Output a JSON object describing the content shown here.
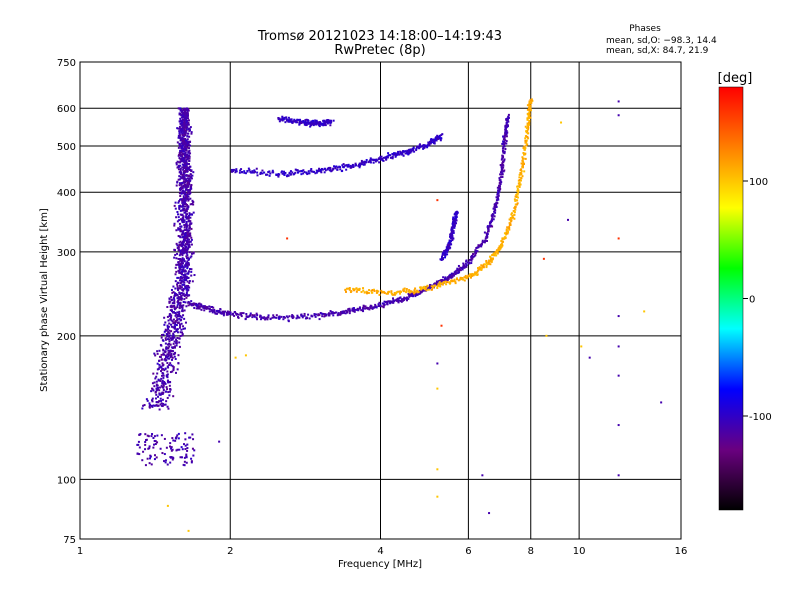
{
  "chart_data": {
    "type": "scatter",
    "title": "Tromsø 20121023 14:18:00–14:19:43",
    "subtitle": "RwPretec (8p)",
    "xlabel": "Frequency [MHz]",
    "ylabel": "Stationary phase Virtual Height [km]",
    "x_scale": "log",
    "y_scale": "log",
    "xlim": [
      1,
      16
    ],
    "ylim": [
      75,
      750
    ],
    "x_ticks": [
      1,
      2,
      4,
      6,
      8,
      10,
      16
    ],
    "y_ticks": [
      75,
      100,
      200,
      300,
      400,
      500,
      600,
      750
    ],
    "grid": true,
    "phases_box": {
      "heading": "Phases",
      "line_o": "mean, sd,O: −98.3, 14.4",
      "line_x": "mean, sd,X:  84.7, 21.9"
    },
    "colorbar": {
      "label": "[deg]",
      "range": [
        -180,
        180
      ],
      "ticks": [
        100,
        0,
        -100
      ],
      "colors": [
        "#000000",
        "#6a0080",
        "#0000ff",
        "#00ffff",
        "#00ff00",
        "#ffff00",
        "#ff7f00",
        "#ff0000"
      ]
    },
    "series": [
      {
        "kind": "cloud",
        "comment_phase": -110,
        "x_range": [
          1.3,
          1.75
        ],
        "y_range": [
          140,
          600
        ],
        "shape": "spike_f_range"
      },
      {
        "kind": "cloud",
        "comment_phase": -110,
        "x_range": [
          1.3,
          1.7
        ],
        "y_range": [
          107,
          125
        ],
        "shape": "blob"
      },
      {
        "kind": "trace",
        "comment_phase": -110,
        "points": [
          [
            1.65,
            235
          ],
          [
            1.8,
            228
          ],
          [
            2.0,
            222
          ],
          [
            2.4,
            218
          ],
          [
            3.0,
            220
          ],
          [
            3.5,
            225
          ],
          [
            4.0,
            232
          ],
          [
            4.5,
            240
          ],
          [
            5.0,
            252
          ],
          [
            5.5,
            265
          ],
          [
            6.0,
            285
          ],
          [
            6.5,
            320
          ],
          [
            6.8,
            370
          ],
          [
            7.0,
            440
          ],
          [
            7.1,
            520
          ],
          [
            7.2,
            580
          ]
        ]
      },
      {
        "kind": "trace",
        "comment_phase": 110,
        "points": [
          [
            3.4,
            250
          ],
          [
            4.2,
            245
          ],
          [
            5.0,
            252
          ],
          [
            6.0,
            265
          ],
          [
            6.6,
            285
          ],
          [
            7.0,
            310
          ],
          [
            7.4,
            360
          ],
          [
            7.7,
            450
          ],
          [
            7.9,
            560
          ],
          [
            8.0,
            630
          ]
        ]
      },
      {
        "kind": "trace",
        "comment_phase": -100,
        "points": [
          [
            2.0,
            445
          ],
          [
            2.5,
            437
          ],
          [
            3.0,
            443
          ],
          [
            3.5,
            453
          ],
          [
            4.0,
            470
          ],
          [
            4.5,
            485
          ],
          [
            5.0,
            505
          ],
          [
            5.3,
            525
          ]
        ]
      },
      {
        "kind": "trace",
        "comment_phase": -100,
        "points": [
          [
            2.5,
            570
          ],
          [
            2.8,
            560
          ],
          [
            3.0,
            558
          ],
          [
            3.2,
            562
          ]
        ]
      },
      {
        "kind": "trace",
        "comment_phase": -100,
        "points": [
          [
            5.3,
            290
          ],
          [
            5.5,
            310
          ],
          [
            5.6,
            340
          ],
          [
            5.7,
            365
          ]
        ]
      },
      {
        "kind": "scatter",
        "comment_phase": 100,
        "points": [
          [
            1.5,
            88
          ],
          [
            1.65,
            78
          ],
          [
            2.05,
            180
          ],
          [
            2.15,
            182
          ],
          [
            5.2,
            92
          ],
          [
            5.2,
            105
          ],
          [
            5.2,
            155
          ],
          [
            8.6,
            200
          ],
          [
            9.2,
            560
          ],
          [
            10.1,
            190
          ],
          [
            13.5,
            225
          ]
        ]
      },
      {
        "kind": "scatter",
        "comment_phase": -110,
        "points": [
          [
            1.9,
            120
          ],
          [
            5.2,
            175
          ],
          [
            6.4,
            102
          ],
          [
            6.6,
            85
          ],
          [
            9.5,
            350
          ],
          [
            10.5,
            180
          ],
          [
            12.0,
            220
          ],
          [
            12.0,
            190
          ],
          [
            12.0,
            165
          ],
          [
            12.0,
            130
          ],
          [
            12.0,
            102
          ],
          [
            12.0,
            620
          ],
          [
            12.0,
            580
          ],
          [
            14.6,
            145
          ]
        ]
      },
      {
        "kind": "scatter",
        "comment_phase": 160,
        "points": [
          [
            2.6,
            320
          ],
          [
            12.0,
            320
          ],
          [
            5.2,
            385
          ],
          [
            5.3,
            210
          ],
          [
            8.5,
            290
          ]
        ]
      }
    ]
  }
}
